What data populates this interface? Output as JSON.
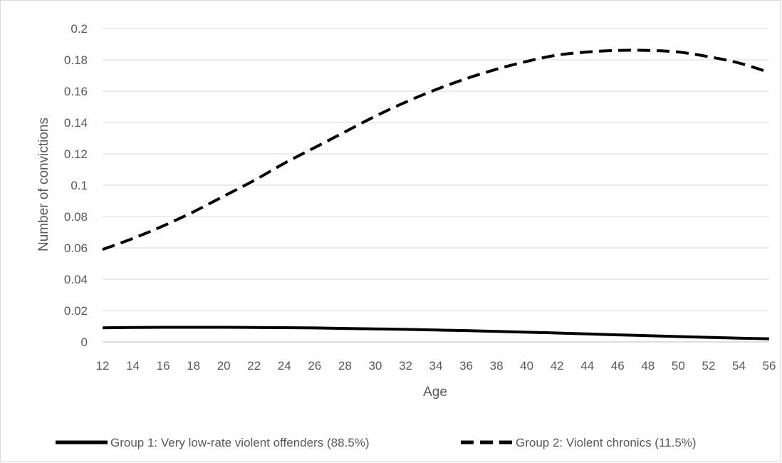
{
  "chart_data": {
    "type": "line",
    "title": "",
    "xlabel": "Age",
    "ylabel": "Number of convictions",
    "x": [
      12,
      14,
      16,
      18,
      20,
      22,
      24,
      26,
      28,
      30,
      32,
      34,
      36,
      38,
      40,
      42,
      44,
      46,
      48,
      50,
      52,
      54,
      56
    ],
    "xlim": [
      12,
      56
    ],
    "ylim": [
      0,
      0.2
    ],
    "y_ticks": [
      "0",
      "0.02",
      "0.04",
      "0.06",
      "0.08",
      "0.1",
      "0.12",
      "0.14",
      "0.16",
      "0.18",
      "0.2"
    ],
    "x_ticks": [
      "12",
      "14",
      "16",
      "18",
      "20",
      "22",
      "24",
      "26",
      "28",
      "30",
      "32",
      "34",
      "36",
      "38",
      "40",
      "42",
      "44",
      "46",
      "48",
      "50",
      "52",
      "54",
      "56"
    ],
    "grid": "horizontal",
    "legend_position": "bottom",
    "series": [
      {
        "name": "Group 1: Very low-rate violent offenders (88.5%)",
        "style": "solid",
        "color": "#000000",
        "values": [
          0.009,
          0.0092,
          0.0093,
          0.0093,
          0.0093,
          0.0092,
          0.0091,
          0.0089,
          0.0086,
          0.0083,
          0.008,
          0.0076,
          0.0072,
          0.0067,
          0.0062,
          0.0057,
          0.0051,
          0.0045,
          0.004,
          0.0034,
          0.0029,
          0.0024,
          0.002
        ]
      },
      {
        "name": "Group 2: Violent chronics (11.5%)",
        "style": "dashed",
        "color": "#000000",
        "values": [
          0.059,
          0.066,
          0.074,
          0.083,
          0.093,
          0.103,
          0.114,
          0.124,
          0.134,
          0.144,
          0.153,
          0.161,
          0.168,
          0.174,
          0.179,
          0.183,
          0.185,
          0.186,
          0.186,
          0.185,
          0.182,
          0.178,
          0.172
        ]
      }
    ]
  }
}
